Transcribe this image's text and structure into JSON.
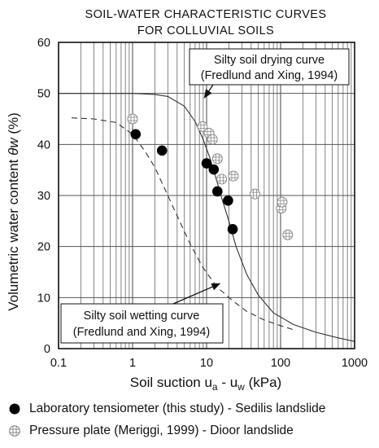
{
  "chart_data": {
    "type": "scatter",
    "title": "SOIL-WATER CHARACTERISTIC CURVES",
    "subtitle": "FOR COLLUVIAL SOILS",
    "xlabel_main": "Soil suction u",
    "xlabel_sub_a": "a",
    "xlabel_mid": " - u",
    "xlabel_sub_w": "w",
    "xlabel_unit": " (kPa)",
    "ylabel_main": "Volumetric water content  ",
    "ylabel_symbol": "θw",
    "ylabel_unit": " (%)",
    "x_scale": "log",
    "xlim": [
      0.1,
      1000
    ],
    "ylim": [
      0,
      60
    ],
    "x_ticks": [
      "0.1",
      "1",
      "10",
      "100",
      "1000"
    ],
    "y_ticks": [
      "0",
      "10",
      "20",
      "30",
      "40",
      "50",
      "60"
    ],
    "grid": true,
    "series": [
      {
        "name": "Laboratory tensiometer (this study) - Sedilis landslide",
        "marker": "filled-circle",
        "points": [
          [
            1.1,
            42.0
          ],
          [
            2.5,
            38.8
          ],
          [
            10.0,
            36.3
          ],
          [
            12.5,
            35.1
          ],
          [
            14.0,
            30.8
          ],
          [
            19.5,
            29.0
          ],
          [
            22.5,
            23.4
          ]
        ]
      },
      {
        "name": "Pressure plate (Meriggi, 1999) - Dioor landslide",
        "marker": "crossed-circle",
        "points": [
          [
            1.0,
            45.0
          ],
          [
            8.8,
            43.5
          ],
          [
            10.8,
            42.2
          ],
          [
            12.0,
            41.0
          ],
          [
            14.0,
            37.2
          ],
          [
            16.0,
            33.2
          ],
          [
            23.0,
            33.8
          ],
          [
            45.0,
            30.3
          ],
          [
            102.0,
            27.5
          ],
          [
            105.0,
            28.7
          ],
          [
            125.0,
            22.3
          ]
        ]
      }
    ],
    "curves": [
      {
        "name": "Silty soil drying curve",
        "style": "solid",
        "points": [
          [
            0.1,
            50.0
          ],
          [
            1.0,
            50.0
          ],
          [
            2.0,
            49.8
          ],
          [
            3.0,
            49.4
          ],
          [
            5.0,
            47.5
          ],
          [
            7.0,
            44.5
          ],
          [
            9.0,
            41.0
          ],
          [
            11.0,
            37.5
          ],
          [
            13.0,
            34.0
          ],
          [
            16.0,
            29.5
          ],
          [
            20.0,
            25.0
          ],
          [
            25.0,
            20.0
          ],
          [
            35.0,
            14.5
          ],
          [
            50.0,
            10.5
          ],
          [
            80.0,
            7.0
          ],
          [
            150.0,
            4.7
          ],
          [
            300.0,
            3.2
          ],
          [
            600.0,
            2.1
          ],
          [
            1000.0,
            1.4
          ]
        ]
      },
      {
        "name": "Silty soil wetting curve",
        "style": "dashed",
        "points": [
          [
            0.15,
            45.2
          ],
          [
            0.3,
            45.0
          ],
          [
            0.6,
            44.3
          ],
          [
            1.0,
            42.0
          ],
          [
            1.5,
            38.5
          ],
          [
            2.0,
            35.5
          ],
          [
            3.0,
            30.0
          ],
          [
            4.0,
            26.0
          ],
          [
            6.0,
            20.5
          ],
          [
            9.0,
            15.8
          ],
          [
            14.0,
            12.0
          ],
          [
            22.0,
            9.5
          ],
          [
            35.0,
            7.3
          ],
          [
            60.0,
            5.6
          ],
          [
            100.0,
            4.5
          ],
          [
            150.0,
            3.7
          ]
        ]
      }
    ],
    "annotations": [
      {
        "line1": "Silty soil drying curve",
        "line2": "(Fredlund and Xing, 1994)",
        "arrow_to": [
          9.2,
          49.0
        ]
      },
      {
        "line1": "Silty soil wetting curve",
        "line2": "(Fredlund and Xing, 1994)",
        "arrow_to": [
          15.5,
          12.8
        ]
      }
    ],
    "colors": {
      "filled_marker": "#000000",
      "open_marker": "#888888",
      "grid_major": "#555555",
      "grid_minor": "#777777",
      "axes": "#111111"
    }
  }
}
